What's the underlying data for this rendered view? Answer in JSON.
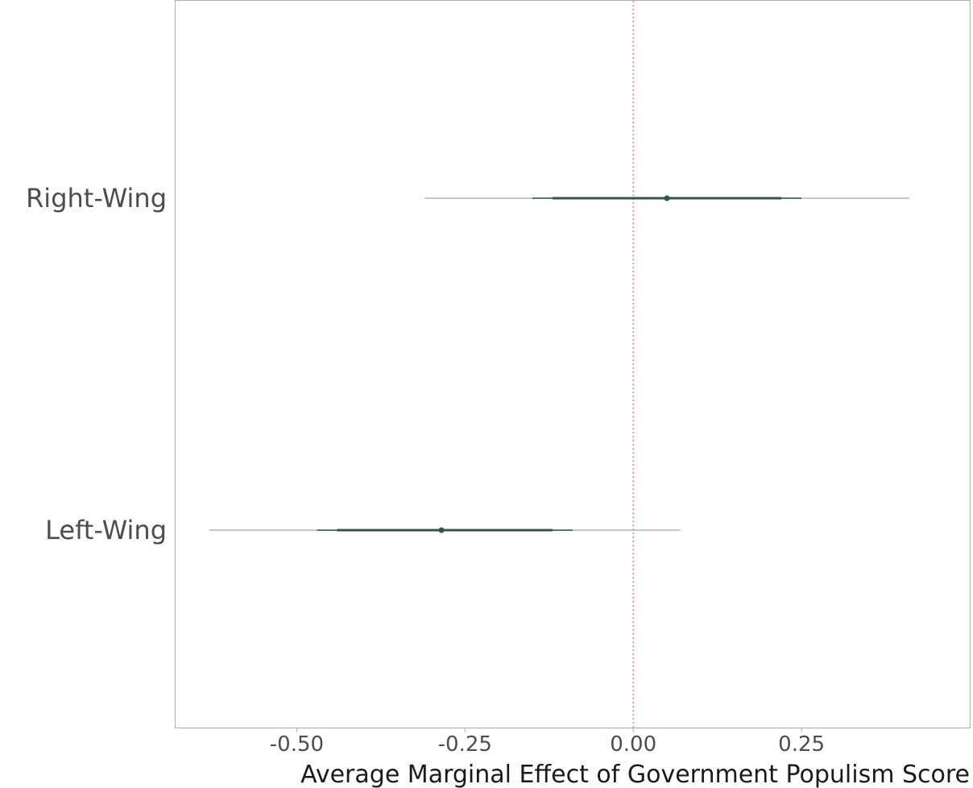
{
  "chart_data": {
    "type": "interval",
    "xlabel": "Average Marginal Effect of Government Populism Score",
    "ylabel": "",
    "xlim": [
      -0.68,
      0.5
    ],
    "x_ticks": [
      -0.5,
      -0.25,
      0.0,
      0.25
    ],
    "x_tick_labels": [
      "-0.50",
      "-0.25",
      "0.00",
      "0.25"
    ],
    "reference_line": 0.0,
    "grid": false,
    "categories": [
      "Right-Wing",
      "Left-Wing"
    ],
    "estimates": [
      {
        "category": "Right-Wing",
        "estimate": 0.05,
        "ci_outer": [
          -0.31,
          0.41
        ],
        "ci_mid": [
          -0.15,
          0.25
        ],
        "ci_inner": [
          -0.12,
          0.22
        ]
      },
      {
        "category": "Left-Wing",
        "estimate": -0.285,
        "ci_outer": [
          -0.63,
          0.07
        ],
        "ci_mid": [
          -0.47,
          -0.09
        ],
        "ci_inner": [
          -0.44,
          -0.12
        ]
      }
    ]
  },
  "colors": {
    "point": "#35534f",
    "inner_interval": "#35534f",
    "outer_interval": "#a9bcba",
    "reference_line": "#e0707a",
    "panel_border": "#b3b3b3"
  }
}
